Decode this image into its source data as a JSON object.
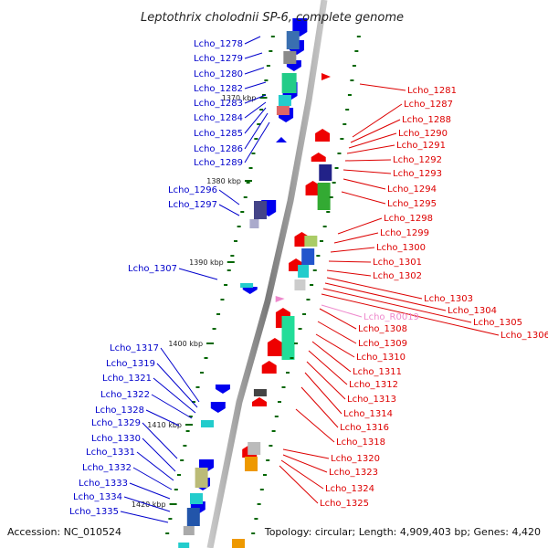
{
  "title": "Leptothrix cholodnii SP-6, complete genome",
  "footer": {
    "accession": "Accession: NC_010524",
    "topology": "Topology: circular; Length: 4,909,403 bp; Genes: 4,420"
  },
  "scale_marks": [
    "1370 kbp",
    "1380 kbp",
    "1390 kbp",
    "1400 kbp",
    "1410 kbp",
    "1420 kbp"
  ],
  "left_labels": [
    "Lcho_1278",
    "Lcho_1279",
    "Lcho_1280",
    "Lcho_1282",
    "Lcho_1283",
    "Lcho_1284",
    "Lcho_1285",
    "Lcho_1286",
    "Lcho_1289",
    "Lcho_1296",
    "Lcho_1297",
    "Lcho_1307",
    "Lcho_1317",
    "Lcho_1319",
    "Lcho_1321",
    "Lcho_1322",
    "Lcho_1328",
    "Lcho_1329",
    "Lcho_1330",
    "Lcho_1331",
    "Lcho_1332",
    "Lcho_1333",
    "Lcho_1334",
    "Lcho_1335"
  ],
  "right_labels": [
    "Lcho_1281",
    "Lcho_1287",
    "Lcho_1288",
    "Lcho_1290",
    "Lcho_1291",
    "Lcho_1292",
    "Lcho_1293",
    "Lcho_1294",
    "Lcho_1295",
    "Lcho_1298",
    "Lcho_1299",
    "Lcho_1300",
    "Lcho_1301",
    "Lcho_1302",
    "Lcho_1303",
    "Lcho_1304",
    "Lcho_1305",
    "Lcho_1306",
    "Lcho_R0019",
    "Lcho_1308",
    "Lcho_1309",
    "Lcho_1310",
    "Lcho_1311",
    "Lcho_1312",
    "Lcho_1313",
    "Lcho_1314",
    "Lcho_1316",
    "Lcho_1318",
    "Lcho_1320",
    "Lcho_1323",
    "Lcho_1324",
    "Lcho_1325"
  ],
  "colors": {
    "left_labels": "#0000cc",
    "right_labels": "#dd0000",
    "rna_label": "#ee88cc",
    "backbone": "#888888",
    "scale_tick": "#006600",
    "forward_gene": "#0000ee",
    "reverse_gene": "#ee0000"
  }
}
